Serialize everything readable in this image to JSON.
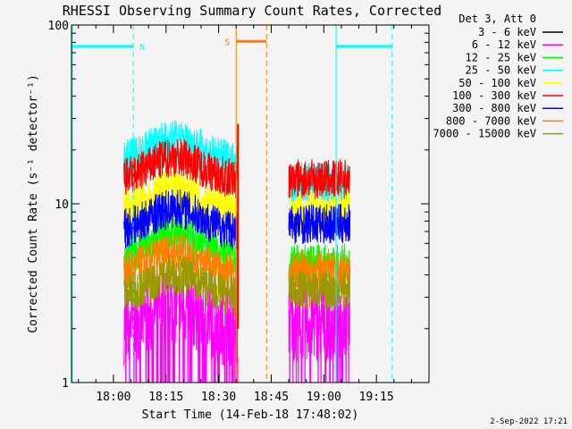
{
  "chart_data": {
    "type": "line",
    "title": "RHESSI Observing Summary Count Rates, Corrected",
    "xlabel": "Start Time (14-Feb-18 17:48:02)",
    "ylabel": "Corrected Count Rate (s⁻¹ detector⁻¹)",
    "yscale": "log",
    "ylim": [
      1,
      100
    ],
    "xlim": [
      "17:48:02",
      "19:30:00"
    ],
    "y_ticks": [
      "1",
      "10",
      "100"
    ],
    "x_ticks": [
      "18:00",
      "18:15",
      "18:30",
      "18:45",
      "19:00",
      "19:15"
    ],
    "legend_title": "Det 3, Att 0",
    "legend_position": "top-right, outside plot",
    "series": [
      {
        "name": "3 - 6 keV",
        "color": "#000000",
        "level": null
      },
      {
        "name": "6 - 12 keV",
        "color": "#ff00ff",
        "level": [
          2.0,
          2.0
        ]
      },
      {
        "name": "12 - 25 keV",
        "color": "#00ff00",
        "level": [
          5.0,
          4.2
        ]
      },
      {
        "name": "25 - 50 keV",
        "color": "#00ffff",
        "level": [
          17.0,
          12.0
        ]
      },
      {
        "name": "50 - 100 keV",
        "color": "#ffff00",
        "level": [
          9.0,
          8.5
        ]
      },
      {
        "name": "100 - 300 keV",
        "color": "#ff0000",
        "level": [
          13.5,
          12.5
        ]
      },
      {
        "name": "300 - 800 keV",
        "color": "#0000ff",
        "level": [
          7.0,
          7.0
        ]
      },
      {
        "name": "800 - 7000 keV",
        "color": "#ff8000",
        "level": [
          4.0,
          3.8
        ]
      },
      {
        "name": "7000 - 15000 keV",
        "color": "#999900",
        "level": [
          3.0,
          3.0
        ]
      }
    ],
    "data_intervals": [
      {
        "start": "18:03:00",
        "end": "18:35:30"
      },
      {
        "start": "18:50:00",
        "end": "19:07:30"
      }
    ],
    "spike": {
      "time": "18:35:30",
      "peak": 28
    },
    "markers": [
      {
        "label": "N",
        "color": "#00ffff",
        "line_times": [
          "18:05:40",
          "19:03:30",
          "19:19:30"
        ],
        "bars": [
          [
            "17:48:02",
            "18:05:40"
          ],
          [
            "19:03:30",
            "19:19:30"
          ]
        ],
        "bar_level": 76
      },
      {
        "label": "S",
        "color": "#ff8000",
        "line_times": [
          "18:35:00",
          "18:43:40"
        ],
        "bars": [
          [
            "18:35:00",
            "18:43:40"
          ]
        ],
        "bar_level": 81
      }
    ],
    "cyan_solid_line": [
      "17:48:02",
      "19:03:30"
    ],
    "footer_date": "2-Sep-2022 17:21"
  }
}
